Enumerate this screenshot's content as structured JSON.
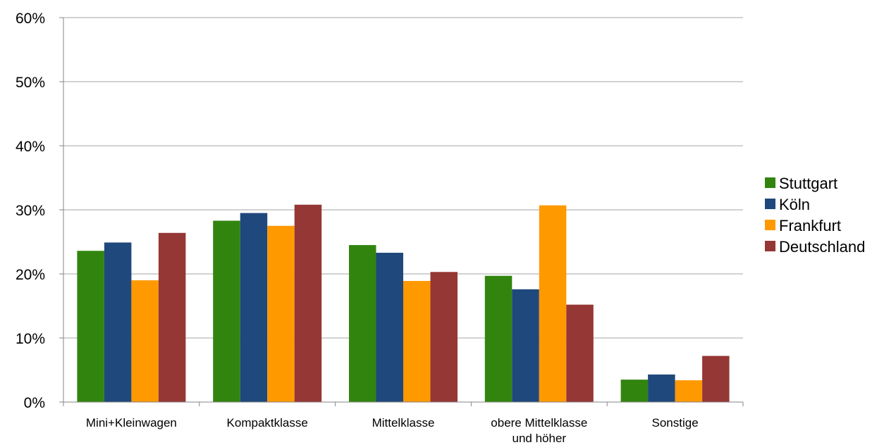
{
  "chart_data": {
    "type": "bar",
    "categories": [
      [
        "Mini+Kleinwagen"
      ],
      [
        "Kompaktklasse"
      ],
      [
        "Mittelklasse"
      ],
      [
        "obere Mittelklasse",
        "und höher"
      ],
      [
        "Sonstige"
      ]
    ],
    "series": [
      {
        "name": "Stuttgart",
        "color": "#31850f",
        "values": [
          23.6,
          28.3,
          24.5,
          19.7,
          3.5
        ]
      },
      {
        "name": "Köln",
        "color": "#1f487c",
        "values": [
          24.9,
          29.5,
          23.3,
          17.6,
          4.3
        ]
      },
      {
        "name": "Frankfurt",
        "color": "#ff9900",
        "values": [
          19.0,
          27.5,
          18.9,
          30.7,
          3.4
        ]
      },
      {
        "name": "Deutschland",
        "color": "#953735",
        "values": [
          26.4,
          30.8,
          20.3,
          15.2,
          7.2
        ]
      }
    ],
    "yticks": [
      "0%",
      "10%",
      "20%",
      "30%",
      "40%",
      "50%",
      "60%"
    ],
    "ylim": [
      0,
      60
    ],
    "grid": true,
    "legend_position": "right",
    "title": "",
    "xlabel": "",
    "ylabel": ""
  }
}
